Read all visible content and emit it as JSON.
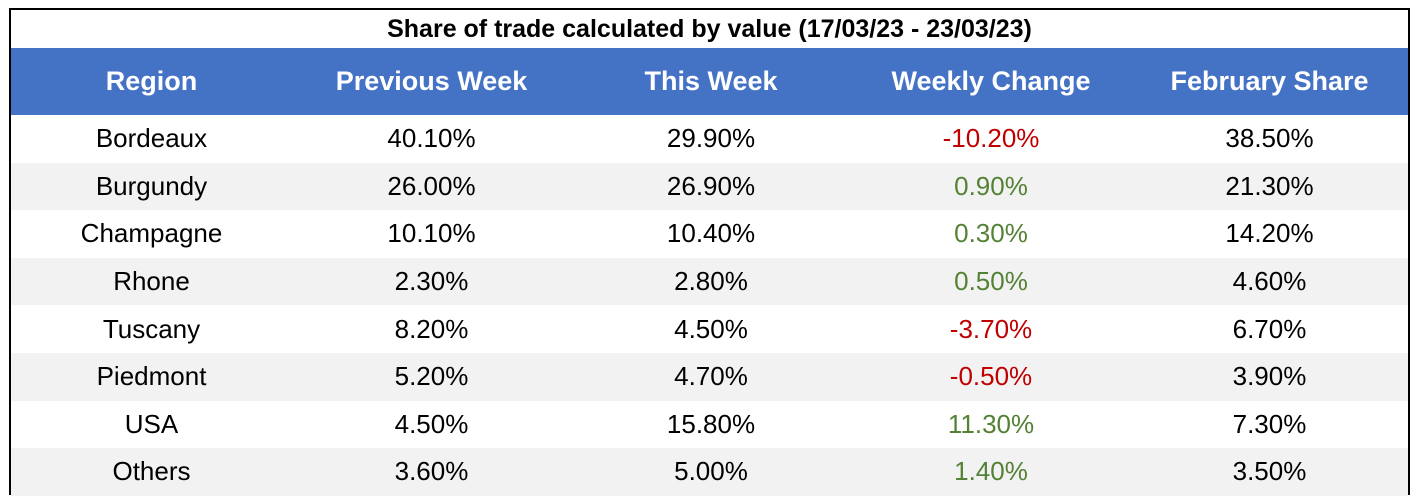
{
  "chart_data": {
    "type": "table",
    "title": "Share of trade calculated by value (17/03/23 - 23/03/23)",
    "columns": [
      "Region",
      "Previous Week",
      "This Week",
      "Weekly Change",
      "February Share"
    ],
    "rows": [
      [
        "Bordeaux",
        "40.10%",
        "29.90%",
        "-10.20%",
        "38.50%"
      ],
      [
        "Burgundy",
        "26.00%",
        "26.90%",
        "0.90%",
        "21.30%"
      ],
      [
        "Champagne",
        "10.10%",
        "10.40%",
        "0.30%",
        "14.20%"
      ],
      [
        "Rhone",
        "2.30%",
        "2.80%",
        "0.50%",
        "4.60%"
      ],
      [
        "Tuscany",
        "8.20%",
        "4.50%",
        "-3.70%",
        "6.70%"
      ],
      [
        "Piedmont",
        "5.20%",
        "4.70%",
        "-0.50%",
        "3.90%"
      ],
      [
        "USA",
        "4.50%",
        "15.80%",
        "11.30%",
        "7.30%"
      ],
      [
        "Others",
        "3.60%",
        "5.00%",
        "1.40%",
        "3.50%"
      ]
    ]
  },
  "colors": {
    "header_bg": "#4472c4",
    "header_text": "#ffffff",
    "negative_change": "#c00000",
    "positive_change": "#548235",
    "stripe": "#f2f2f2"
  }
}
